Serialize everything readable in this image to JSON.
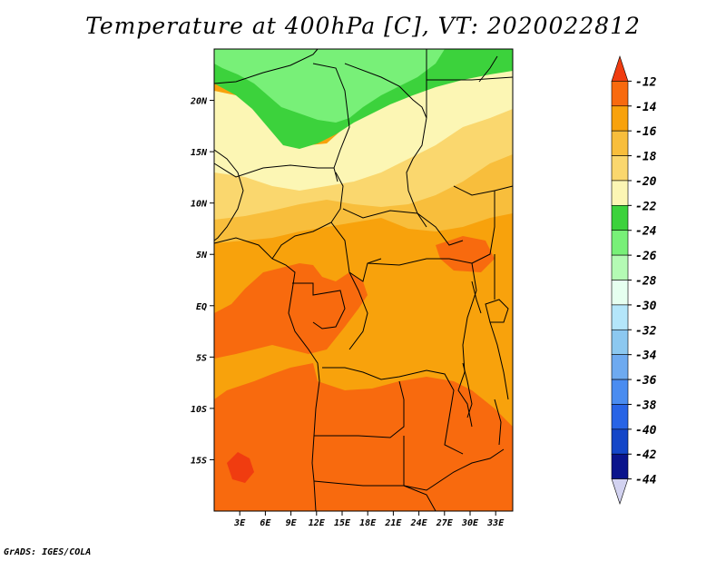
{
  "title": "Temperature at 400hPa [C], VT: 2020022812",
  "credit": "GrADS: IGES/COLA",
  "map": {
    "lat_ticks": [
      {
        "label": "20N",
        "lat": 20
      },
      {
        "label": "15N",
        "lat": 15
      },
      {
        "label": "10N",
        "lat": 10
      },
      {
        "label": "5N",
        "lat": 5
      },
      {
        "label": "EQ",
        "lat": 0
      },
      {
        "label": "5S",
        "lat": -5
      },
      {
        "label": "10S",
        "lat": -10
      },
      {
        "label": "15S",
        "lat": -15
      }
    ],
    "lon_ticks": [
      {
        "label": "3E",
        "lon": 3
      },
      {
        "label": "6E",
        "lon": 6
      },
      {
        "label": "9E",
        "lon": 9
      },
      {
        "label": "12E",
        "lon": 12
      },
      {
        "label": "15E",
        "lon": 15
      },
      {
        "label": "18E",
        "lon": 18
      },
      {
        "label": "21E",
        "lon": 21
      },
      {
        "label": "24E",
        "lon": 24
      },
      {
        "label": "27E",
        "lon": 27
      },
      {
        "label": "30E",
        "lon": 30
      },
      {
        "label": "33E",
        "lon": 33
      }
    ],
    "extent": {
      "lon_min": 0,
      "lon_max": 35,
      "lat_min": -20,
      "lat_max": 25
    }
  },
  "colorbar": {
    "labels": [
      "-12",
      "-14",
      "-16",
      "-18",
      "-20",
      "-22",
      "-24",
      "-26",
      "-28",
      "-30",
      "-32",
      "-34",
      "-36",
      "-38",
      "-40",
      "-42",
      "-44"
    ],
    "colors": [
      "#f03c10",
      "#f86a0e",
      "#f8a20c",
      "#f8be3c",
      "#fad76e",
      "#fcf6b4",
      "#3cd23c",
      "#78f078",
      "#b4fab4",
      "#e6fff0",
      "#b4e6fa",
      "#8cc8f0",
      "#6eaaf0",
      "#4a8cf0",
      "#2864e6",
      "#1446c8",
      "#0a148c",
      "#d2d2f0"
    ],
    "top_label": "-12"
  },
  "field_colors": {
    "gt_-14": "#f86a0e",
    "-16_-14": "#f8a20c",
    "-18_-16": "#f8be3c",
    "-20_-18": "#fad76e",
    "-22_-20": "#fcf6b4",
    "-24_-22": "#3cd23c",
    "-26_-24": "#78f078",
    "hot_-12": "#f03c10"
  }
}
